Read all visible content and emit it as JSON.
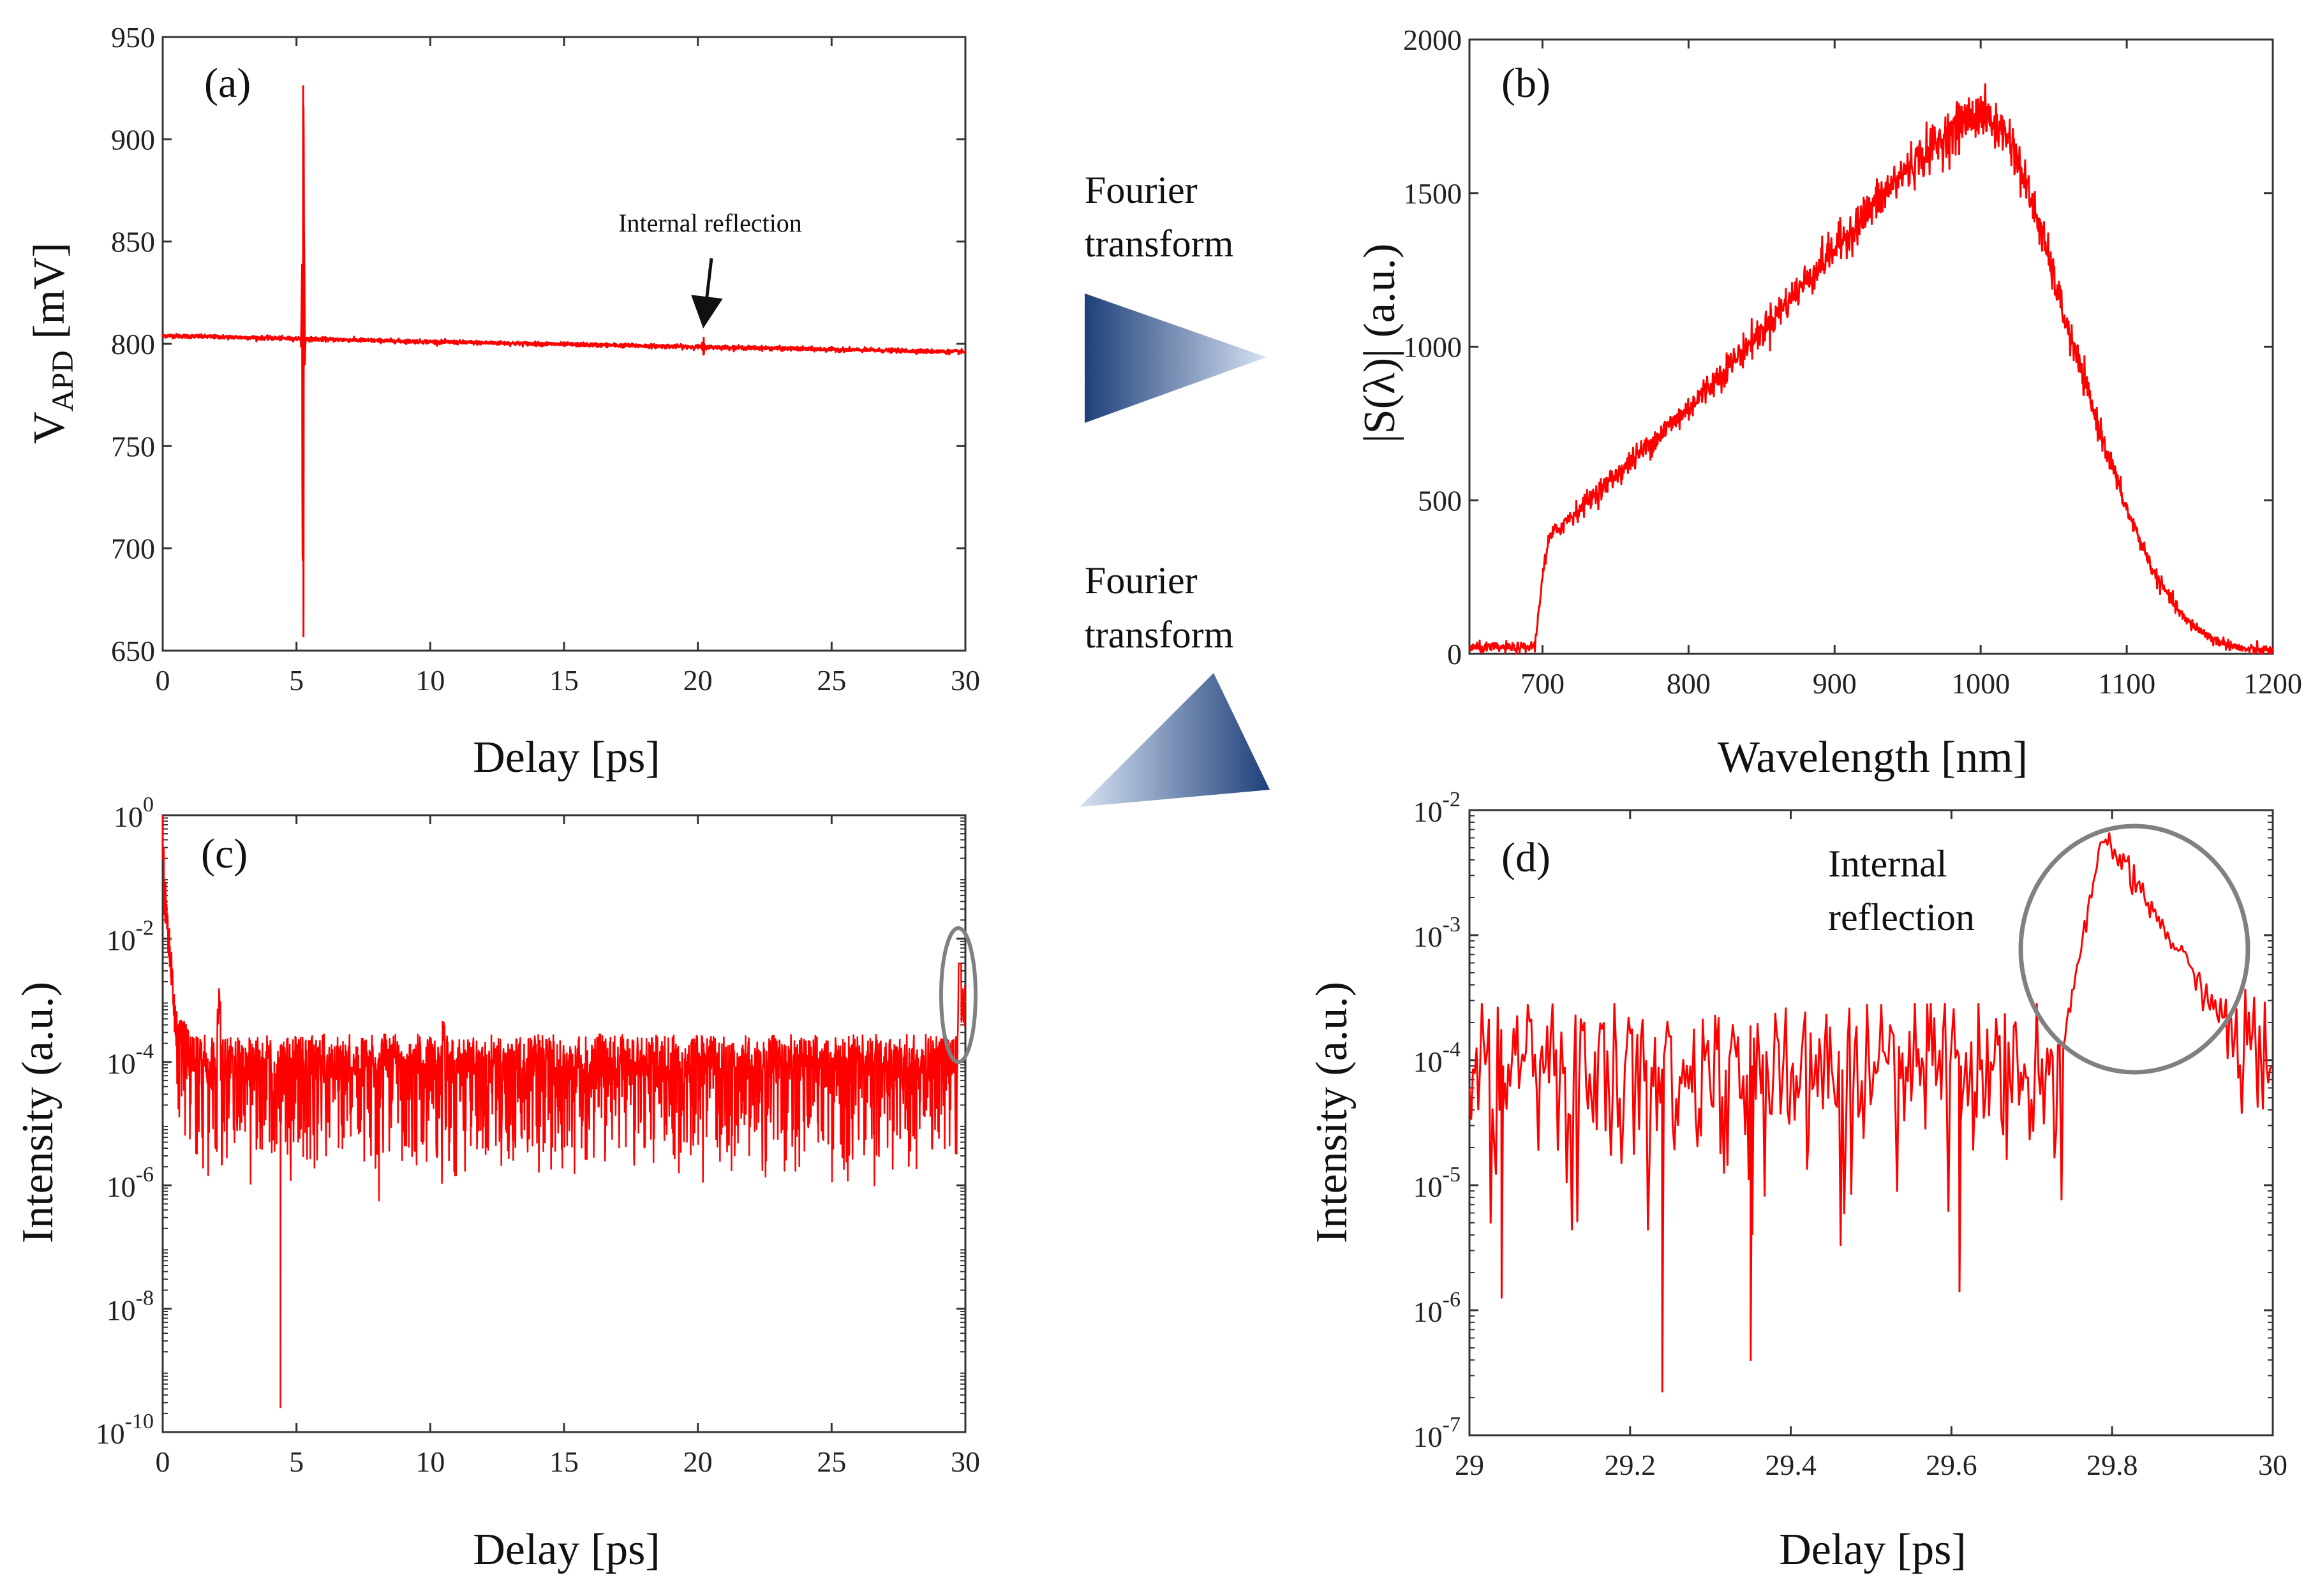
{
  "colors": {
    "series": "#ff0000",
    "axis": "#333333",
    "ellipse": "#808080",
    "arrow_dark": "#1e3f7a",
    "arrow_light": "#d6e2f2"
  },
  "middle": {
    "top_text": [
      "Fourier",
      "transform"
    ],
    "bottom_text": [
      "Fourier",
      "transform"
    ]
  },
  "chart_data": [
    {
      "id": "a",
      "type": "line",
      "panel_label": "(a)",
      "xlabel": "Delay [ps]",
      "ylabel_main": "V",
      "ylabel_sub": "APD",
      "ylabel_unit": " [mV]",
      "xlim": [
        0,
        30
      ],
      "ylim": [
        650,
        950
      ],
      "yscale": "linear",
      "xticks": [
        0,
        5,
        10,
        15,
        20,
        25,
        30
      ],
      "xtick_labels": [
        "0",
        "5",
        "10",
        "15",
        "20",
        "25",
        "30"
      ],
      "yticks": [
        650,
        700,
        750,
        800,
        850,
        900,
        950
      ],
      "ytick_labels": [
        "650",
        "700",
        "750",
        "800",
        "850",
        "900",
        "950"
      ],
      "annotation": "Internal reflection",
      "baseline": [
        [
          0,
          804
        ],
        [
          10,
          801
        ],
        [
          20,
          798.5
        ],
        [
          30,
          796
        ]
      ],
      "main_burst": {
        "center": 5.25,
        "max": 926,
        "min": 657
      },
      "reflection": {
        "center": 20.2,
        "amplitude": 5
      }
    },
    {
      "id": "b",
      "type": "line",
      "panel_label": "(b)",
      "xlabel": "Wavelength [nm]",
      "ylabel": "|S(λ)| (a.u.)",
      "xlim": [
        650,
        1200
      ],
      "ylim": [
        0,
        2000
      ],
      "yscale": "linear",
      "xticks": [
        700,
        800,
        900,
        1000,
        1100,
        1200
      ],
      "xtick_labels": [
        "700",
        "800",
        "900",
        "1000",
        "1100",
        "1200"
      ],
      "yticks": [
        0,
        500,
        1000,
        1500,
        2000
      ],
      "ytick_labels": [
        "0",
        "500",
        "1000",
        "1500",
        "2000"
      ],
      "x": [
        650,
        690,
        695,
        700,
        705,
        720,
        750,
        800,
        850,
        900,
        950,
        990,
        1000,
        1020,
        1040,
        1060,
        1080,
        1100,
        1120,
        1140,
        1160,
        1180,
        1200
      ],
      "y": [
        20,
        20,
        30,
        260,
        380,
        450,
        580,
        800,
        1050,
        1320,
        1580,
        1740,
        1760,
        1680,
        1400,
        1050,
        750,
        470,
        250,
        110,
        45,
        15,
        10
      ]
    },
    {
      "id": "c",
      "type": "line",
      "panel_label": "(c)",
      "xlabel": "Delay [ps]",
      "ylabel": "Intensity (a.u.)",
      "xlim": [
        0,
        30
      ],
      "ylim_exp": [
        -10,
        0
      ],
      "yscale": "log",
      "xticks": [
        0,
        5,
        10,
        15,
        20,
        25,
        30
      ],
      "xtick_labels": [
        "0",
        "5",
        "10",
        "15",
        "20",
        "25",
        "30"
      ],
      "yticks_exp": [
        -10,
        -8,
        -6,
        -4,
        -2,
        0
      ],
      "ytick_base": "10",
      "ytick_exps": [
        "-10",
        "-8",
        "-6",
        "-4",
        "-2",
        "0"
      ],
      "noise_floor_exp": -4.3,
      "features": [
        {
          "x": 0.0,
          "log_value": 0
        },
        {
          "x": 2.1,
          "log_value": -3.2
        },
        {
          "x": 4.4,
          "log_value": -9.6
        },
        {
          "x": 10.5,
          "log_value": -3.4
        },
        {
          "x": 29.8,
          "log_value": -2.4
        }
      ]
    },
    {
      "id": "d",
      "type": "line",
      "panel_label": "(d)",
      "xlabel": "Delay [ps]",
      "ylabel": "Intensity (a.u.)",
      "xlim": [
        29,
        30
      ],
      "ylim_exp": [
        -7,
        -2
      ],
      "yscale": "log",
      "xticks": [
        29,
        29.2,
        29.4,
        29.6,
        29.8,
        30
      ],
      "xtick_labels": [
        "29",
        "29.2",
        "29.4",
        "29.6",
        "29.8",
        "30"
      ],
      "yticks_exp": [
        -7,
        -6,
        -5,
        -4,
        -3,
        -2
      ],
      "ytick_base": "10",
      "ytick_exps": [
        "-7",
        "-6",
        "-5",
        "-4",
        "-3",
        "-2"
      ],
      "annotation_lines": [
        "Internal",
        "reflection"
      ],
      "noise_floor_exp": -4.05,
      "dips": [
        {
          "x": 29.04,
          "log_value": -5.9
        },
        {
          "x": 29.24,
          "log_value": -6.65
        },
        {
          "x": 29.35,
          "log_value": -6.4
        },
        {
          "x": 29.61,
          "log_value": -5.85
        }
      ],
      "peak": {
        "x": 29.79,
        "log_value": -2.2
      }
    }
  ]
}
